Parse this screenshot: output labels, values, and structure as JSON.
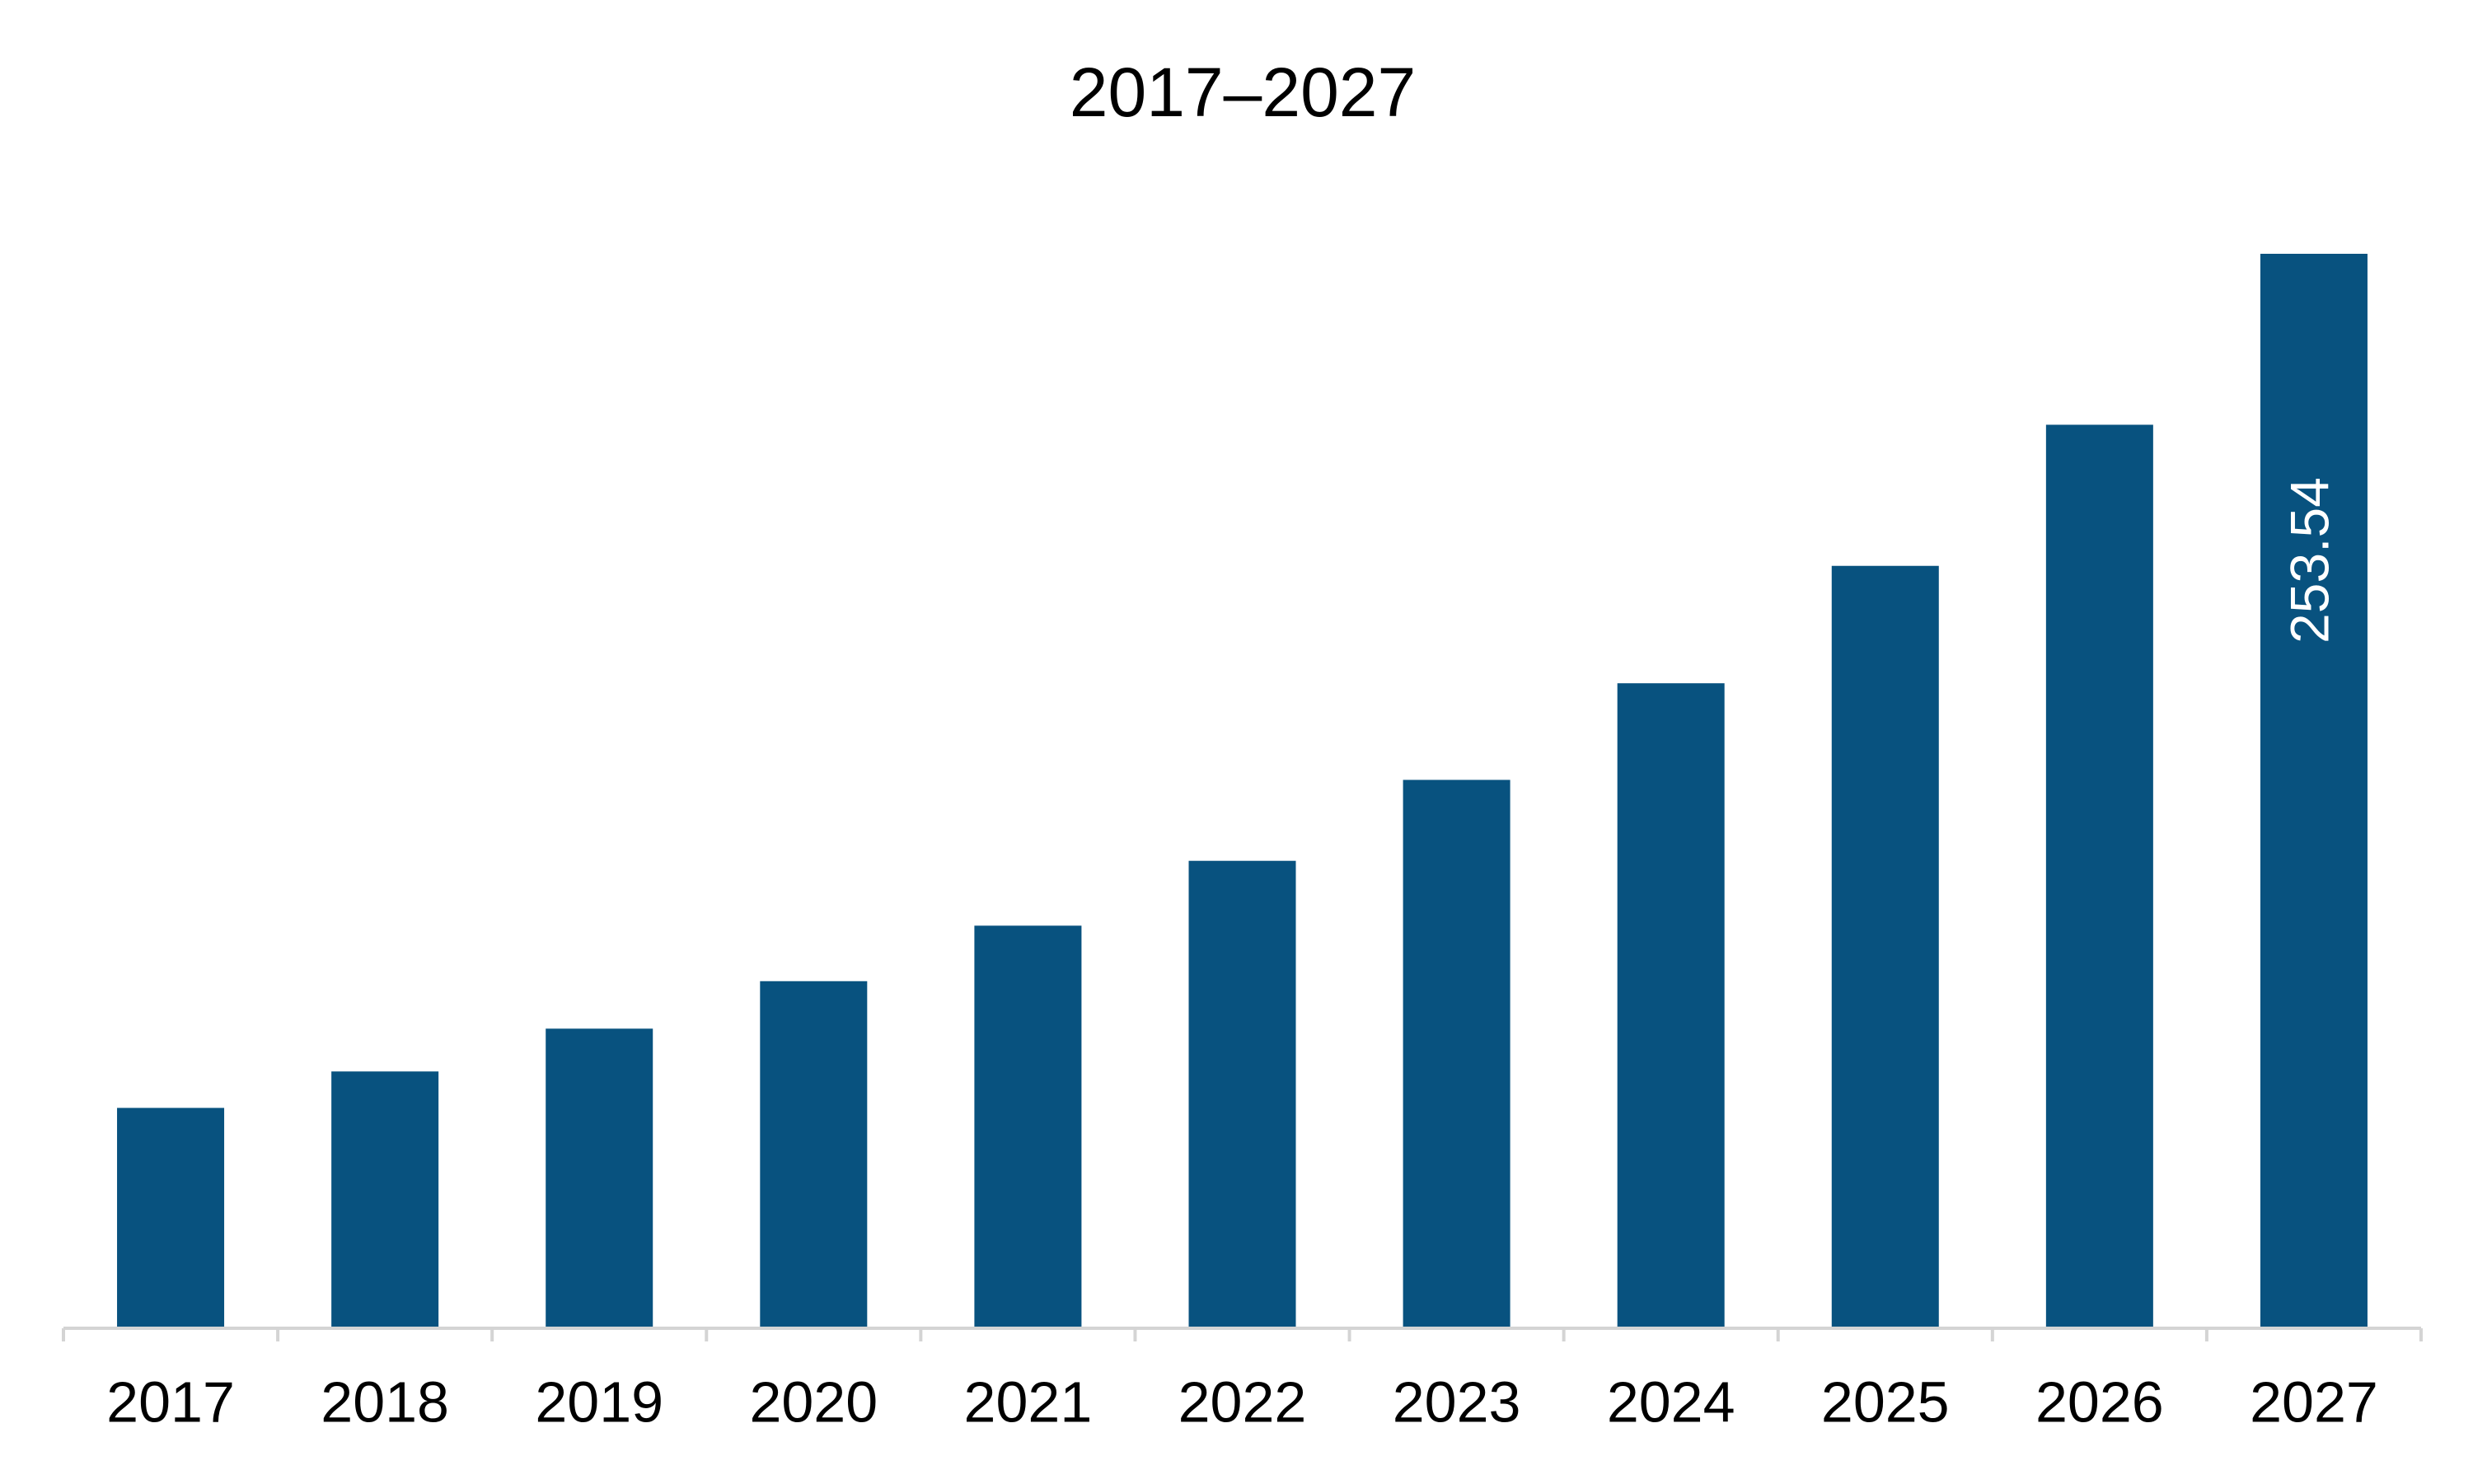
{
  "chart_data": {
    "type": "bar",
    "title": "2017–2027",
    "categories": [
      "2017",
      "2018",
      "2019",
      "2020",
      "2021",
      "2022",
      "2023",
      "2024",
      "2025",
      "2026",
      "2027"
    ],
    "values": [
      52.0,
      60.6,
      70.7,
      81.9,
      95.0,
      110.3,
      129.4,
      152.2,
      179.9,
      213.2,
      253.54
    ],
    "value_labels": [
      null,
      null,
      null,
      null,
      null,
      null,
      null,
      null,
      null,
      null,
      "253.54"
    ],
    "color": "#08527f"
  }
}
